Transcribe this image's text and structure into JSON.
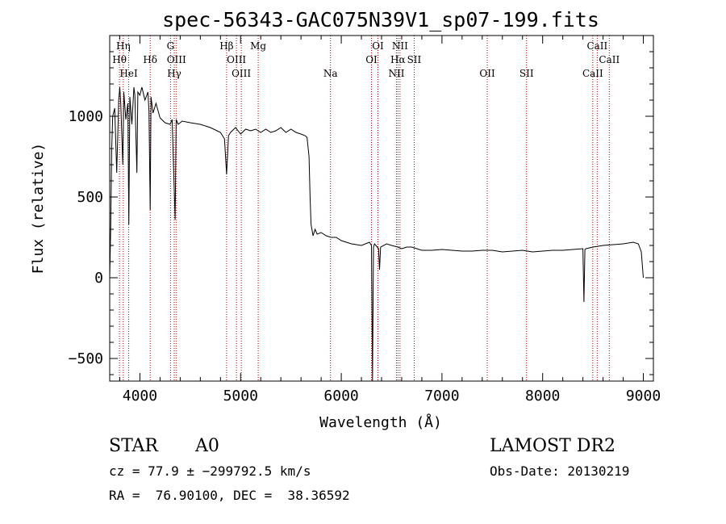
{
  "chart_data": {
    "type": "line",
    "title": "spec-56343-GAC075N39V1_sp07-199.fits",
    "xlabel": "Wavelength (Å)",
    "ylabel": "Flux (relative)",
    "xlim": [
      3700,
      9100
    ],
    "ylim": [
      -640,
      1500
    ],
    "xticks": [
      4000,
      5000,
      6000,
      7000,
      8000,
      9000
    ],
    "yticks": [
      -500,
      0,
      500,
      1000
    ],
    "series": [
      {
        "x": [
          3700,
          3710,
          3720,
          3730,
          3750,
          3770,
          3790,
          3800,
          3810,
          3830,
          3840,
          3860,
          3880,
          3890,
          3900,
          3920,
          3940,
          3950,
          3960,
          3970,
          3980,
          4000,
          4020,
          4050,
          4080,
          4090,
          4102,
          4110,
          4130,
          4160,
          4200,
          4250,
          4300,
          4320,
          4340,
          4350,
          4360,
          4380,
          4420,
          4500,
          4600,
          4700,
          4800,
          4840,
          4861,
          4880,
          4900,
          4950,
          5000,
          5050,
          5100,
          5150,
          5200,
          5250,
          5300,
          5350,
          5400,
          5450,
          5500,
          5550,
          5600,
          5640,
          5660,
          5680,
          5690,
          5700,
          5720,
          5740,
          5760,
          5800,
          5850,
          5900,
          5950,
          6000,
          6100,
          6200,
          6280,
          6300,
          6310,
          6320,
          6330,
          6370,
          6380,
          6390,
          6450,
          6500,
          6562,
          6600,
          6650,
          6700,
          6800,
          6900,
          7000,
          7100,
          7200,
          7300,
          7400,
          7500,
          7600,
          7700,
          7800,
          7900,
          8000,
          8100,
          8200,
          8300,
          8400,
          8410,
          8420,
          8430,
          8500,
          8600,
          8700,
          8800,
          8900,
          8950,
          8980,
          9000
        ],
        "y": [
          0,
          300,
          800,
          1000,
          1050,
          650,
          1100,
          1180,
          1080,
          700,
          1150,
          980,
          1080,
          330,
          1120,
          950,
          1180,
          1130,
          880,
          650,
          1150,
          1130,
          1180,
          1100,
          1150,
          1030,
          420,
          1120,
          1020,
          1080,
          990,
          960,
          950,
          980,
          560,
          360,
          980,
          950,
          970,
          960,
          950,
          930,
          900,
          860,
          640,
          880,
          900,
          930,
          890,
          920,
          910,
          920,
          900,
          920,
          900,
          910,
          930,
          900,
          920,
          900,
          890,
          880,
          870,
          750,
          500,
          330,
          260,
          300,
          270,
          280,
          260,
          250,
          250,
          230,
          210,
          200,
          220,
          200,
          -650,
          190,
          210,
          180,
          50,
          190,
          210,
          200,
          190,
          180,
          190,
          190,
          170,
          170,
          175,
          170,
          165,
          165,
          170,
          170,
          160,
          165,
          170,
          160,
          165,
          170,
          170,
          175,
          180,
          -150,
          175,
          180,
          190,
          200,
          205,
          210,
          220,
          210,
          160,
          0
        ]
      }
    ],
    "lines": [
      {
        "name": "Hη",
        "wl": 3835,
        "row": 0
      },
      {
        "name": "Hθ",
        "wl": 3797,
        "row": 1
      },
      {
        "name": "HeI",
        "wl": 3889,
        "row": 2
      },
      {
        "name": "Hδ",
        "wl": 4102,
        "row": 1
      },
      {
        "name": "G",
        "wl": 4304,
        "row": 0
      },
      {
        "name": "OIII",
        "wl": 4363,
        "row": 1
      },
      {
        "name": "Hγ",
        "wl": 4341,
        "row": 2
      },
      {
        "name": "Hβ",
        "wl": 4861,
        "row": 0
      },
      {
        "name": "OIII",
        "wl": 4959,
        "row": 1
      },
      {
        "name": "OIII",
        "wl": 5007,
        "row": 2
      },
      {
        "name": "Mg",
        "wl": 5175,
        "row": 0
      },
      {
        "name": "Na",
        "wl": 5893,
        "row": 2
      },
      {
        "name": "OI",
        "wl": 6364,
        "row": 0
      },
      {
        "name": "OI",
        "wl": 6300,
        "row": 1
      },
      {
        "name": "NII",
        "wl": 6583,
        "row": 0
      },
      {
        "name": "Hα",
        "wl": 6563,
        "row": 1
      },
      {
        "name": "NII",
        "wl": 6548,
        "row": 2
      },
      {
        "name": "SII",
        "wl": 6724,
        "row": 1
      },
      {
        "name": "OII",
        "wl": 7450,
        "row": 2
      },
      {
        "name": "SII",
        "wl": 7840,
        "row": 2
      },
      {
        "name": "CaII",
        "wl": 8542,
        "row": 0
      },
      {
        "name": "CaII",
        "wl": 8662,
        "row": 1
      },
      {
        "name": "CaII",
        "wl": 8498,
        "row": 2
      }
    ],
    "line_color": "#aa0000",
    "spectrum_color": "#000000"
  },
  "info": {
    "object_class": "STAR",
    "subclass": "A0",
    "survey": "LAMOST DR2",
    "cz": "cz = 77.9 ± −299792.5 km/s",
    "obs_date": "Obs-Date: 20130219",
    "coords": "RA =  76.90100, DEC =  38.36592"
  }
}
